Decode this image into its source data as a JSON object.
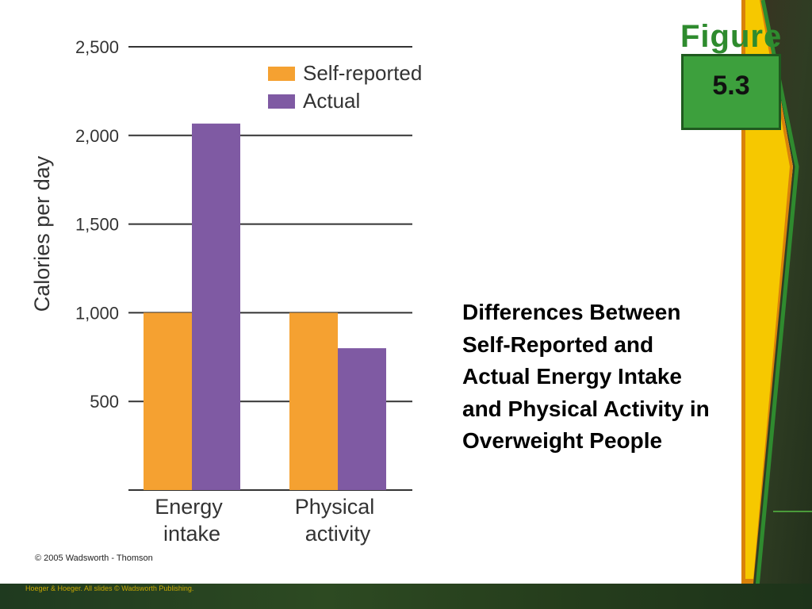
{
  "figure_badge": {
    "word": "Figure",
    "number": "5.3"
  },
  "title": "Differences Between Self-Reported and Actual Energy Intake and Physical Activity in Overweight People",
  "copyright": "© 2005 Wadsworth - Thomson",
  "footer": "Hoeger & Hoeger. All slides © Wadsworth Publishing.",
  "colors": {
    "self_reported": "#f5a131",
    "actual": "#7f5aa3",
    "yellow_stripe": "#f6c800",
    "orange_stripe": "#d9820a",
    "green_border": "#2f8b2f"
  },
  "chart_data": {
    "type": "bar",
    "categories": [
      "Energy intake",
      "Physical activity"
    ],
    "category_lines": [
      [
        "Energy",
        "intake"
      ],
      [
        "Physical",
        "activity"
      ]
    ],
    "series": [
      {
        "name": "Self-reported",
        "values": [
          1000,
          1000
        ]
      },
      {
        "name": "Actual",
        "values": [
          2067,
          800
        ]
      }
    ],
    "ylabel": "Calories per day",
    "xlabel": "",
    "ylim": [
      0,
      2500
    ],
    "yticks": [
      500,
      1000,
      1500,
      2000,
      2500
    ],
    "ytick_labels": [
      "500",
      "1,000",
      "1,500",
      "2,000",
      "2,500"
    ],
    "grid": true,
    "legend_position": "top-right"
  }
}
